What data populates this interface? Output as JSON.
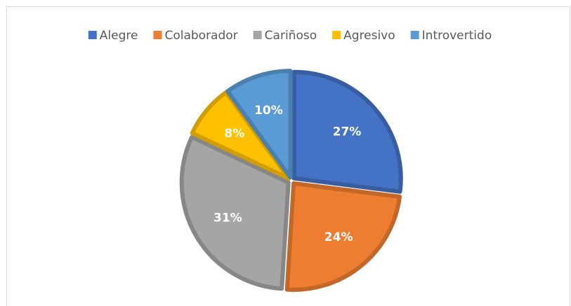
{
  "chart_data": {
    "type": "pie",
    "categories": [
      "Alegre",
      "Colaborador",
      "Cariñoso",
      "Agresivo",
      "Introvertido"
    ],
    "values": [
      27,
      24,
      31,
      8,
      10
    ],
    "value_labels": [
      "27%",
      "24%",
      "31%",
      "8%",
      "10%"
    ],
    "colors": [
      "#4472c4",
      "#ed7d31",
      "#a5a5a5",
      "#ffc000",
      "#5b9bd5"
    ],
    "legend": "top"
  }
}
